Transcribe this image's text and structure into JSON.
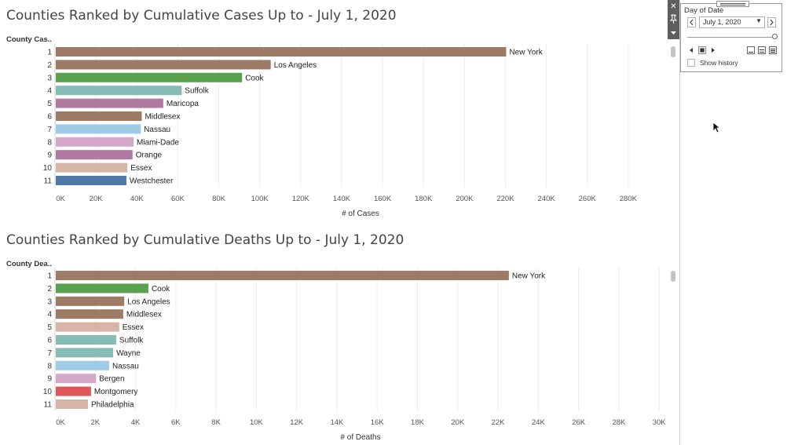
{
  "chart_data": [
    {
      "type": "bar",
      "orientation": "horizontal",
      "title": "Counties Ranked by Cumulative Cases Up to - July 1, 2020",
      "rank_header": "County Cas..",
      "xlabel": "# of Cases",
      "xlim": [
        0,
        300000
      ],
      "ticks": [
        0,
        20000,
        40000,
        60000,
        80000,
        100000,
        120000,
        140000,
        160000,
        180000,
        200000,
        220000,
        240000,
        260000,
        280000
      ],
      "tick_labels": [
        "0K",
        "20K",
        "40K",
        "60K",
        "80K",
        "100K",
        "120K",
        "140K",
        "160K",
        "180K",
        "200K",
        "220K",
        "240K",
        "260K",
        "280K"
      ],
      "grid": "vertical",
      "ranks": [
        "1",
        "2",
        "3",
        "4",
        "5",
        "6",
        "7",
        "8",
        "9",
        "10",
        "11"
      ],
      "categories": [
        "New York",
        "Los Angeles",
        "Cook",
        "Suffolk",
        "Maricopa",
        "Middlesex",
        "Nassau",
        "Miami-Dade",
        "Orange",
        "Essex",
        "Westchester"
      ],
      "values": [
        220000,
        105000,
        91000,
        61500,
        52500,
        42000,
        41500,
        38000,
        37500,
        35000,
        34500
      ],
      "colors": [
        "#9e7b66",
        "#9e7b66",
        "#59a14f",
        "#86bcb6",
        "#b07aa1",
        "#9e7b66",
        "#a0cbe8",
        "#d4a6c8",
        "#b07aa1",
        "#d7b5a6",
        "#4e79a7"
      ]
    },
    {
      "type": "bar",
      "orientation": "horizontal",
      "title": "Counties Ranked by Cumulative Deaths Up to - July 1, 2020",
      "rank_header": "County Dea..",
      "xlabel": "# of Deaths",
      "xlim": [
        0,
        30500
      ],
      "ticks": [
        0,
        2000,
        4000,
        6000,
        8000,
        10000,
        12000,
        14000,
        16000,
        18000,
        20000,
        22000,
        24000,
        26000,
        28000,
        30000
      ],
      "tick_labels": [
        "0K",
        "2K",
        "4K",
        "6K",
        "8K",
        "10K",
        "12K",
        "14K",
        "16K",
        "18K",
        "20K",
        "22K",
        "24K",
        "26K",
        "28K",
        "30K"
      ],
      "grid": "vertical",
      "ranks": [
        "1",
        "2",
        "3",
        "4",
        "5",
        "6",
        "7",
        "8",
        "9",
        "10",
        "11"
      ],
      "categories": [
        "New York",
        "Cook",
        "Los Angeles",
        "Middlesex",
        "Essex",
        "Suffolk",
        "Wayne",
        "Nassau",
        "Bergen",
        "Montgomery",
        "Philadelphia"
      ],
      "values": [
        22500,
        4600,
        3400,
        3350,
        3150,
        3000,
        2850,
        2650,
        2000,
        1750,
        1600
      ],
      "colors": [
        "#9e7b66",
        "#59a14f",
        "#9e7b66",
        "#9e7b66",
        "#d7b5a6",
        "#86bcb6",
        "#86bcb6",
        "#a0cbe8",
        "#d4a6c8",
        "#e15759",
        "#d7b5a6"
      ]
    }
  ],
  "filter": {
    "title": "Day of Date",
    "selected_date": "July 1, 2020",
    "slider_position": 1.0,
    "show_history_label": "Show history",
    "show_history_checked": false
  },
  "icons": {
    "close": "close-icon",
    "pin": "pin-icon",
    "menu": "dropdown-menu-icon",
    "prev": "chevron-left-icon",
    "next": "chevron-right-icon",
    "caret": "caret-down-icon"
  }
}
